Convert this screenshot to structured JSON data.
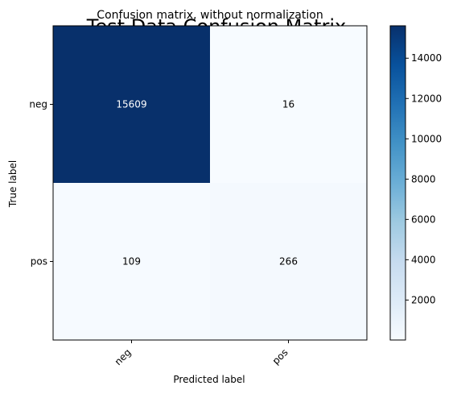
{
  "chart_data": {
    "type": "heatmap",
    "title": "Test Data Confusion Matrix",
    "subtitle": "Confusion matrix, without normalization",
    "xlabel": "Predicted label",
    "ylabel": "True label",
    "x_categories": [
      "neg",
      "pos"
    ],
    "y_categories": [
      "neg",
      "pos"
    ],
    "matrix": [
      [
        15609,
        16
      ],
      [
        109,
        266
      ]
    ],
    "colormap": "Blues",
    "colorbar": {
      "min": 16,
      "max": 15609,
      "ticks": [
        2000,
        4000,
        6000,
        8000,
        10000,
        12000,
        14000
      ]
    },
    "grid": false
  }
}
